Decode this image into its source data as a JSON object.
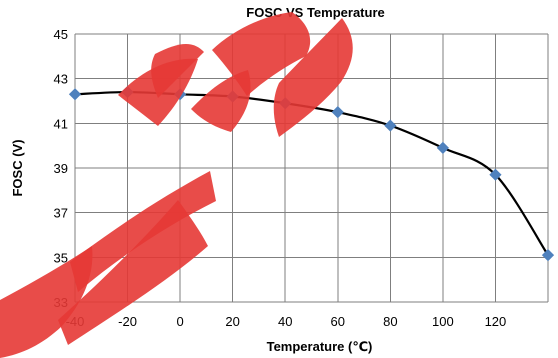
{
  "chart_data": {
    "type": "line",
    "title": "FOSC VS Temperature",
    "xlabel": "Temperature (℃)",
    "ylabel": "FOSC (V)",
    "x_ticks": [
      "-40",
      "-20",
      "0",
      "20",
      "40",
      "60",
      "80",
      "100",
      "120"
    ],
    "y_ticks": [
      "33",
      "35",
      "37",
      "39",
      "41",
      "43",
      "45"
    ],
    "xlim": [
      -40,
      140
    ],
    "ylim": [
      33,
      45
    ],
    "grid": true,
    "series": [
      {
        "x": [
          -40,
          -20,
          0,
          20,
          40,
          60,
          80,
          100,
          120,
          140
        ],
        "y": [
          42.3,
          42.4,
          42.3,
          42.2,
          41.9,
          41.5,
          40.9,
          39.9,
          38.7,
          35.1
        ],
        "color": "#4f81bd",
        "line_color": "#000000",
        "marker": "diamond"
      }
    ],
    "watermark_color": "#e53935"
  }
}
